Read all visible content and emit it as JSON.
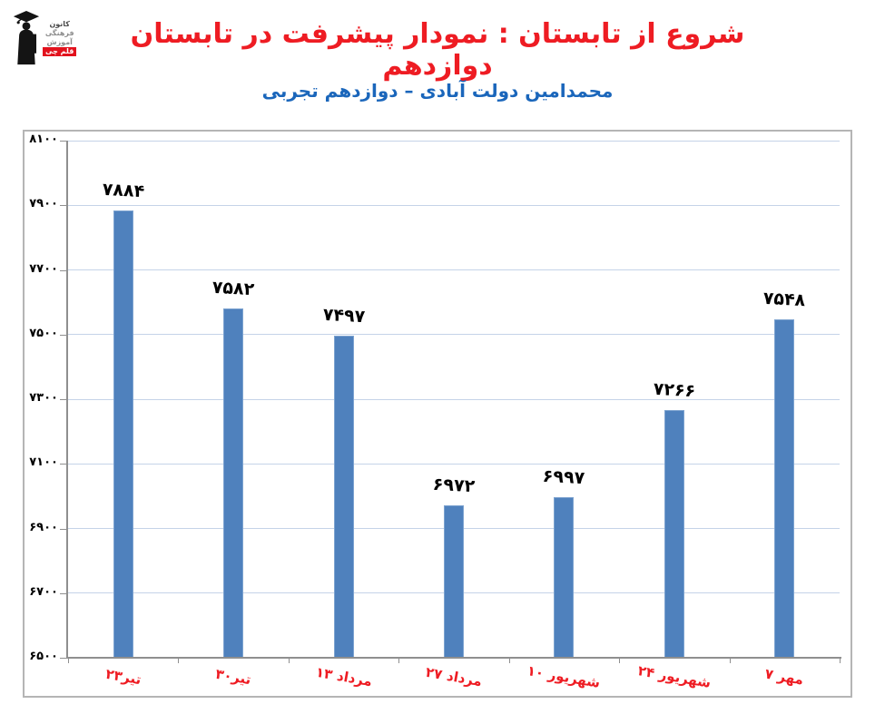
{
  "logo": {
    "line1": "کانون",
    "line2": "فرهنگی",
    "line3": "آموزش",
    "badge": "قلم چی"
  },
  "header": {
    "title": "شروع از تابستان : نمودار پیشرفت در تابستان دوازدهم",
    "subtitle": "محمدامین دولت آبادی – دوازدهم تجربی"
  },
  "chart_data": {
    "type": "bar",
    "title": "شروع از تابستان : نمودار پیشرفت در تابستان دوازدهم",
    "subtitle": "محمدامین دولت آبادی – دوازدهم تجربی",
    "categories": [
      "۲۳تیر",
      "۳۰تیر",
      "۱۳ مرداد",
      "۲۷ مرداد",
      "۱۰ شهریور",
      "۲۴ شهریور",
      "۷ مهر"
    ],
    "values": [
      7884,
      7582,
      7497,
      6972,
      6997,
      7266,
      7548
    ],
    "value_labels": [
      "۷۸۸۴",
      "۷۵۸۲",
      "۷۴۹۷",
      "۶۹۷۲",
      "۶۹۹۷",
      "۷۲۶۶",
      "۷۵۴۸"
    ],
    "ylim": [
      6500,
      8100
    ],
    "ytick_step": 200,
    "yticks": [
      6500,
      6700,
      6900,
      7100,
      7300,
      7500,
      7700,
      7900,
      8100
    ],
    "ytick_labels": [
      "۶۵۰۰",
      "۶۷۰۰",
      "۶۹۰۰",
      "۷۱۰۰",
      "۷۳۰۰",
      "۷۵۰۰",
      "۷۷۰۰",
      "۷۹۰۰",
      "۸۱۰۰"
    ],
    "grid": true,
    "legend": false,
    "xlabel": "",
    "ylabel": "",
    "colors": {
      "title_red": "#ee1c23",
      "subtitle_blue": "#1a66bb",
      "bar_blue": "#4f81bd",
      "bar_border": "#7da3d0",
      "gridline": "#c5d3e8",
      "axis_gray": "#8f8f8f",
      "x_label_red": "#ee1c23",
      "value_label_black": "#000000",
      "badge_red": "#e2121d",
      "frame_gray": "#b5b5b5"
    }
  }
}
